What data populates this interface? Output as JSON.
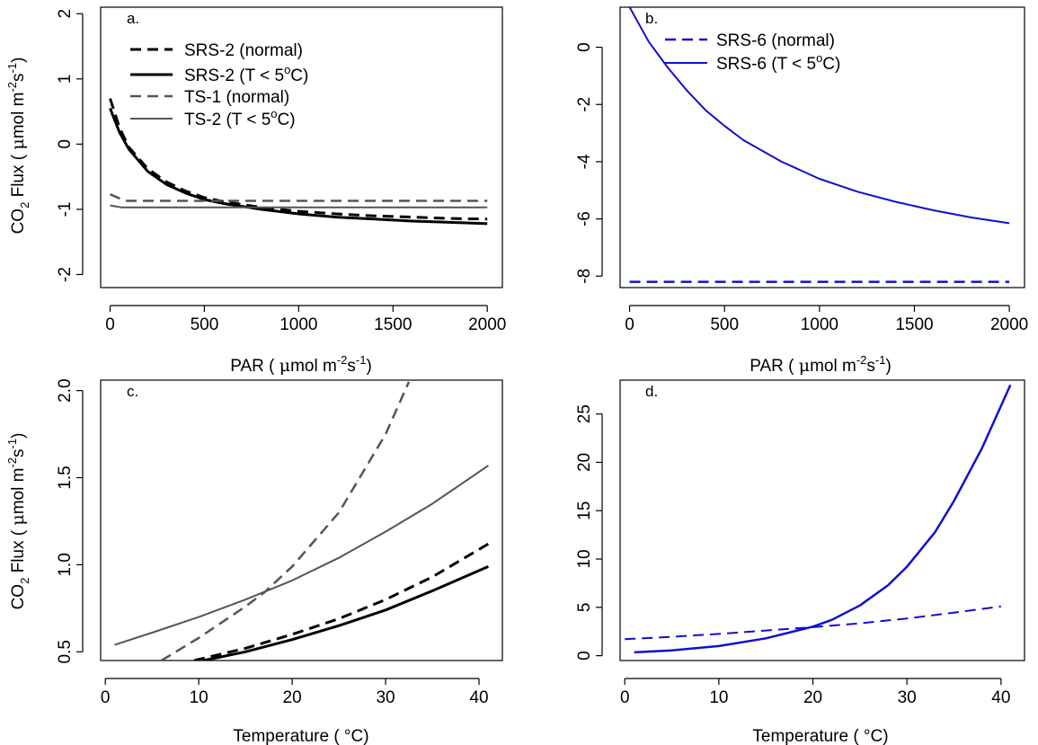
{
  "colors": {
    "black": "#000000",
    "gray": "#555555",
    "blue": "#1010cc"
  },
  "chart_data": [
    {
      "id": "a",
      "type": "line",
      "panel_label": "a.",
      "xlabel_main": "PAR (  ",
      "xlabel_unit": "mol m",
      "xlabel_sup1": "-2",
      "xlabel_s": "s",
      "xlabel_sup2": "-1",
      "xlabel_close": ")",
      "ylabel_main": "CO",
      "ylabel_sub": "2",
      "ylabel_rest": " Flux (  ",
      "ylabel_unit": "mol m",
      "ylabel_sup1": "-2",
      "ylabel_s": "s",
      "ylabel_sup2": "-1",
      "ylabel_close": ")",
      "xlim": [
        -50,
        2080
      ],
      "ylim": [
        -2.2,
        2.1
      ],
      "xticks": [
        "0",
        "500",
        "1000",
        "1500",
        "2000"
      ],
      "xtick_values": [
        0,
        500,
        1000,
        1500,
        2000
      ],
      "yticks": [
        "-2",
        "-1",
        "0",
        "1",
        "2"
      ],
      "ytick_values": [
        -2,
        -1,
        0,
        1,
        2
      ],
      "legend": "top-left",
      "grid": false,
      "series": [
        {
          "name": "SRS-2  (normal)",
          "style": "dashed",
          "color": "#000000",
          "width": 3,
          "x": [
            0,
            50,
            100,
            200,
            300,
            400,
            500,
            600,
            800,
            1000,
            1200,
            1400,
            1600,
            1800,
            2000
          ],
          "y": [
            0.7,
            0.25,
            -0.05,
            -0.38,
            -0.58,
            -0.72,
            -0.82,
            -0.88,
            -0.97,
            -1.03,
            -1.07,
            -1.1,
            -1.12,
            -1.14,
            -1.15
          ]
        },
        {
          "name": "SRS-2 (T < 5",
          "name_sup": "o",
          "name_end": "C)",
          "style": "solid",
          "color": "#000000",
          "width": 3,
          "x": [
            0,
            50,
            100,
            200,
            300,
            400,
            500,
            600,
            800,
            1000,
            1200,
            1400,
            1600,
            1800,
            2000
          ],
          "y": [
            0.55,
            0.18,
            -0.08,
            -0.42,
            -0.62,
            -0.75,
            -0.85,
            -0.91,
            -1.0,
            -1.07,
            -1.12,
            -1.15,
            -1.18,
            -1.2,
            -1.22
          ]
        },
        {
          "name": "TS-1 (normal)",
          "style": "dashed",
          "color": "#555555",
          "width": 2.5,
          "x": [
            0,
            80,
            200,
            500,
            1000,
            1500,
            2000
          ],
          "y": [
            -0.77,
            -0.87,
            -0.87,
            -0.87,
            -0.87,
            -0.87,
            -0.87
          ]
        },
        {
          "name": "TS-2 (T < 5",
          "name_sup": "o",
          "name_end": "C)",
          "style": "solid",
          "color": "#555555",
          "width": 2,
          "x": [
            0,
            60,
            200,
            500,
            1000,
            1500,
            2000
          ],
          "y": [
            -0.94,
            -0.97,
            -0.97,
            -0.97,
            -0.97,
            -0.97,
            -0.97
          ]
        }
      ]
    },
    {
      "id": "b",
      "type": "line",
      "panel_label": "b.",
      "xlabel_main": "PAR (  ",
      "xlabel_unit": "mol m",
      "xlabel_sup1": "-2",
      "xlabel_s": "s",
      "xlabel_sup2": "-1",
      "xlabel_close": ")",
      "xlim": [
        -50,
        2080
      ],
      "ylim": [
        -8.4,
        1.4
      ],
      "xticks": [
        "0",
        "500",
        "1000",
        "1500",
        "2000"
      ],
      "xtick_values": [
        0,
        500,
        1000,
        1500,
        2000
      ],
      "yticks": [
        "-8",
        "-6",
        "-4",
        "-2",
        "0"
      ],
      "ytick_values": [
        -8,
        -6,
        -4,
        -2,
        0
      ],
      "legend": "top-left",
      "grid": false,
      "series": [
        {
          "name": "SRS-6 (normal)",
          "style": "dashed",
          "color": "#1010cc",
          "width": 2.5,
          "x": [
            0,
            500,
            1000,
            1500,
            2000
          ],
          "y": [
            -8.2,
            -8.2,
            -8.2,
            -8.2,
            -8.2
          ]
        },
        {
          "name": "SRS-6 (T < 5",
          "name_sup": "o",
          "name_end": "C)",
          "style": "solid",
          "color": "#1010cc",
          "width": 2,
          "x": [
            0,
            100,
            200,
            300,
            400,
            500,
            600,
            800,
            1000,
            1200,
            1400,
            1600,
            1800,
            2000
          ],
          "y": [
            1.4,
            0.2,
            -0.7,
            -1.5,
            -2.2,
            -2.75,
            -3.25,
            -4.0,
            -4.6,
            -5.05,
            -5.4,
            -5.7,
            -5.95,
            -6.15
          ]
        }
      ]
    },
    {
      "id": "c",
      "type": "line",
      "panel_label": "c.",
      "xlabel": "Temperature ( °C)",
      "ylabel_main": "CO",
      "ylabel_sub": "2",
      "ylabel_rest": " Flux (  ",
      "ylabel_unit": "mol m",
      "ylabel_sup1": "-2",
      "ylabel_s": "s",
      "ylabel_sup2": "-1",
      "ylabel_close": ")",
      "xlim": [
        -0.5,
        42.5
      ],
      "ylim": [
        0.45,
        2.06
      ],
      "xticks": [
        "0",
        "10",
        "20",
        "30",
        "40"
      ],
      "xtick_values": [
        0,
        10,
        20,
        30,
        40
      ],
      "yticks": [
        "0.5",
        "1.0",
        "1.5",
        "2.0"
      ],
      "ytick_values": [
        0.5,
        1.0,
        1.5,
        2.0
      ],
      "grid": false,
      "series": [
        {
          "style": "dashed",
          "color": "#000000",
          "width": 3,
          "x": [
            9.5,
            15,
            20,
            25,
            30,
            35,
            41
          ],
          "y": [
            0.45,
            0.52,
            0.6,
            0.69,
            0.8,
            0.93,
            1.12
          ]
        },
        {
          "style": "solid",
          "color": "#000000",
          "width": 3,
          "x": [
            10.5,
            15,
            20,
            25,
            30,
            35,
            41
          ],
          "y": [
            0.45,
            0.5,
            0.57,
            0.65,
            0.74,
            0.85,
            0.99
          ]
        },
        {
          "style": "dashed",
          "color": "#555555",
          "width": 2.5,
          "x": [
            6,
            10,
            15,
            17,
            20,
            25,
            30,
            32.5
          ],
          "y": [
            0.45,
            0.58,
            0.76,
            0.84,
            0.99,
            1.3,
            1.75,
            2.05
          ]
        },
        {
          "style": "solid",
          "color": "#555555",
          "width": 2,
          "x": [
            1,
            5,
            10,
            15,
            20,
            25,
            30,
            35,
            41
          ],
          "y": [
            0.54,
            0.61,
            0.7,
            0.8,
            0.91,
            1.04,
            1.19,
            1.35,
            1.57
          ]
        }
      ]
    },
    {
      "id": "d",
      "type": "line",
      "panel_label": "d.",
      "xlabel": "Temperature ( °C)",
      "xlim": [
        -0.5,
        42.5
      ],
      "ylim": [
        -0.5,
        28.5
      ],
      "xticks": [
        "0",
        "10",
        "20",
        "30",
        "40"
      ],
      "xtick_values": [
        0,
        10,
        20,
        30,
        40
      ],
      "yticks": [
        "0",
        "5",
        "10",
        "15",
        "20",
        "25"
      ],
      "ytick_values": [
        0,
        5,
        10,
        15,
        20,
        25
      ],
      "grid": false,
      "series": [
        {
          "style": "dashed",
          "color": "#1010cc",
          "width": 2,
          "x": [
            0,
            5,
            10,
            15,
            20,
            25,
            30,
            35,
            40
          ],
          "y": [
            1.7,
            1.95,
            2.25,
            2.6,
            2.95,
            3.35,
            3.85,
            4.45,
            5.1
          ]
        },
        {
          "style": "solid",
          "color": "#1010cc",
          "width": 2.5,
          "x": [
            1,
            5,
            10,
            15,
            20,
            22,
            25,
            28,
            30,
            33,
            35,
            38,
            41
          ],
          "y": [
            0.35,
            0.55,
            1.0,
            1.8,
            3.0,
            3.7,
            5.2,
            7.3,
            9.2,
            12.8,
            16.0,
            21.5,
            28.0
          ]
        }
      ]
    }
  ]
}
